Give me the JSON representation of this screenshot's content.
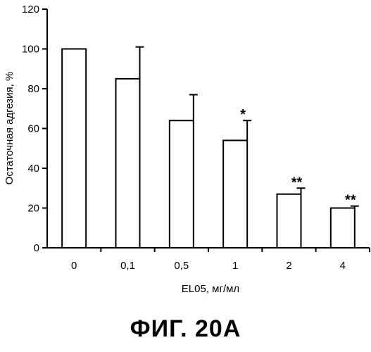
{
  "figure_caption": "ФИГ. 20A",
  "chart_data": {
    "type": "bar",
    "xlabel": "EL05, мг/мл",
    "ylabel": "Остаточная адгезия, %",
    "categories": [
      "0",
      "0,1",
      "0,5",
      "1",
      "2",
      "4"
    ],
    "values": [
      100,
      85,
      64,
      54,
      27,
      20
    ],
    "errors": [
      0,
      16,
      13,
      10,
      3,
      1
    ],
    "significance": [
      "",
      "",
      "",
      "*",
      "**",
      "**"
    ],
    "ylim": [
      0,
      120
    ],
    "yticks": [
      0,
      20,
      40,
      60,
      80,
      100,
      120
    ],
    "grid": false,
    "legend": "none",
    "bar_fill": "#ffffff",
    "stroke": "#000000"
  }
}
